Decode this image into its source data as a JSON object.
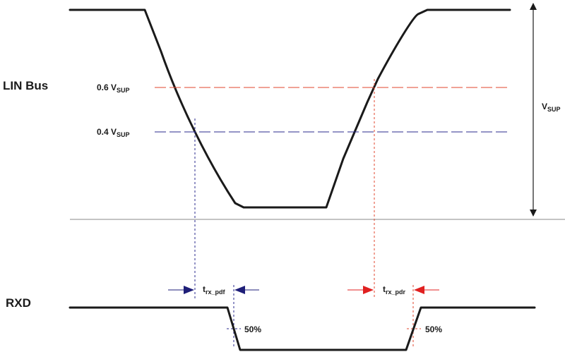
{
  "signals": {
    "lin_bus": "LIN Bus",
    "rxd": "RXD"
  },
  "thresholds": {
    "high": {
      "prefix": "0.6 V",
      "sub": "SUP"
    },
    "low": {
      "prefix": "0.4 V",
      "sub": "SUP"
    }
  },
  "vsup": {
    "main": "V",
    "sub": "SUP"
  },
  "timing": {
    "fall": {
      "main": "t",
      "sub": "rx_pdf"
    },
    "rise": {
      "main": "t",
      "sub": "rx_pdr"
    }
  },
  "rxd_threshold": {
    "left": "50%",
    "right": "50%"
  },
  "colors": {
    "waveform": "#1a1a1a",
    "high_threshold": "#e0462e",
    "low_threshold": "#2a2a8c",
    "fall_arrow": "#1e1e78",
    "rise_arrow": "#e02020",
    "separator": "#8a8a8a"
  }
}
